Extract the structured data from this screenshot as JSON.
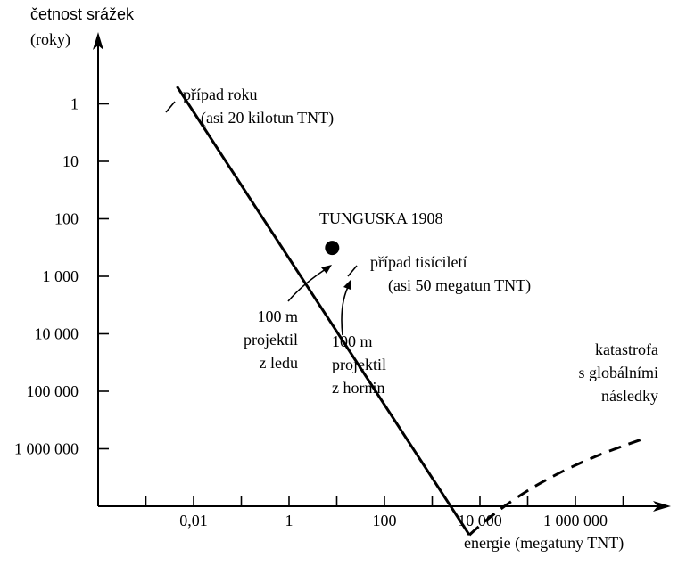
{
  "chart_data": {
    "type": "line",
    "ylabel_lines": [
      "četnost srážek",
      "(roky)"
    ],
    "xlabel": "energie (megatuny TNT)",
    "x_scale": "log",
    "y_scale": "log",
    "y_inverted": true,
    "xlim": [
      0.0001,
      100000000
    ],
    "ylim": [
      0.1,
      10000000
    ],
    "x_ticks": [
      0.001,
      0.01,
      0.1,
      1,
      10,
      100,
      1000,
      10000,
      100000,
      1000000,
      10000000
    ],
    "x_tick_labels": [
      {
        "value": 0.01,
        "label": "0,01"
      },
      {
        "value": 1,
        "label": "1"
      },
      {
        "value": 100,
        "label": "100"
      },
      {
        "value": 10000,
        "label": "10 000"
      },
      {
        "value": 1000000,
        "label": "1 000 000"
      }
    ],
    "y_ticks": [
      {
        "value": 1,
        "label": "1"
      },
      {
        "value": 10,
        "label": "10"
      },
      {
        "value": 100,
        "label": "100"
      },
      {
        "value": 1000,
        "label": "1 000"
      },
      {
        "value": 10000,
        "label": "10 000"
      },
      {
        "value": 100000,
        "label": "100 000"
      },
      {
        "value": 1000000,
        "label": "1 000 000"
      }
    ],
    "series": [
      {
        "style": "solid",
        "points": [
          [
            0.0045,
            0.5
          ],
          [
            6000,
            31600000
          ]
        ]
      },
      {
        "style": "dashed",
        "points": [
          [
            6000,
            31600000
          ],
          [
            90000,
            4000000
          ],
          [
            1500000,
            1500000
          ],
          [
            30000000,
            650000
          ]
        ]
      }
    ],
    "markers": [
      {
        "x": 8,
        "y": 320,
        "label": "TUNGUSKA 1908"
      }
    ],
    "annotations": [
      {
        "id": "year-event",
        "lines": [
          "případ roku",
          "(asi 20 kilotun TNT)"
        ],
        "at": [
          0.02,
          1
        ]
      },
      {
        "id": "millennium-event",
        "lines": [
          "případ tisíciletí",
          "(asi 50 megatun TNT)"
        ],
        "at": [
          50,
          1000
        ]
      },
      {
        "id": "ice-projectile",
        "lines": [
          "100 m",
          "projektil",
          "z ledu"
        ]
      },
      {
        "id": "rock-projectile",
        "lines": [
          "100 m",
          "projektil",
          "z hornin"
        ]
      },
      {
        "id": "global-catastrophe",
        "lines": [
          "katastrofa",
          "s globálními",
          "následky"
        ]
      }
    ]
  }
}
